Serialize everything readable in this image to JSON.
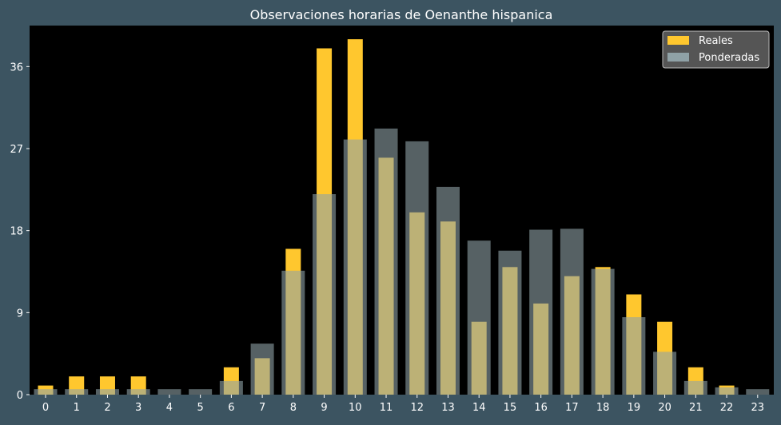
{
  "colors": {
    "background": "#3c5461",
    "plot_area": "#000000",
    "reales": "#ffc72e",
    "ponderadas": "#8fa1a6",
    "text": "#ffffff",
    "legend_bg": "#555555"
  },
  "chart_data": {
    "type": "bar",
    "title": "Observaciones horarias de Oenanthe hispanica",
    "xlabel": "",
    "ylabel": "",
    "categories": [
      "0",
      "1",
      "2",
      "3",
      "4",
      "5",
      "6",
      "7",
      "8",
      "9",
      "10",
      "11",
      "12",
      "13",
      "14",
      "15",
      "16",
      "17",
      "18",
      "19",
      "20",
      "21",
      "22",
      "23"
    ],
    "yticks": [
      0,
      9,
      18,
      27,
      36
    ],
    "ylim": [
      0,
      40.5
    ],
    "grid": false,
    "legend_position": "top-right",
    "series": [
      {
        "name": "Reales",
        "color": "#ffc72e",
        "values": [
          1,
          2,
          2,
          2,
          0,
          0,
          3,
          4,
          16,
          38,
          39,
          26,
          20,
          19,
          8,
          14,
          10,
          13,
          14,
          11,
          8,
          3,
          1,
          0
        ]
      },
      {
        "name": "Ponderadas",
        "color": "#8fa1a6",
        "values": [
          0.6,
          0.6,
          0.6,
          0.6,
          0.6,
          0.6,
          1.5,
          5.6,
          13.6,
          22,
          28,
          29.2,
          27.8,
          22.8,
          16.9,
          15.8,
          18.1,
          18.2,
          13.8,
          8.5,
          4.7,
          1.5,
          0.8,
          0.6
        ]
      }
    ]
  }
}
